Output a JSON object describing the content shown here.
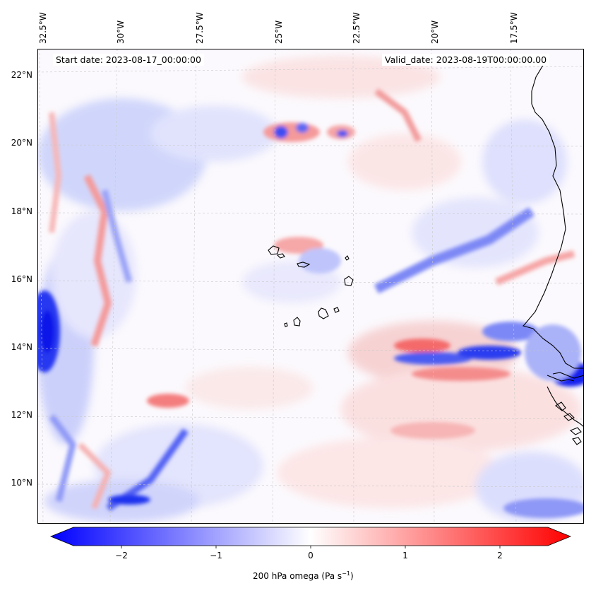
{
  "map": {
    "start_date": "Start date: 2023-08-17_00:00:00",
    "valid_date": "Valid_date: 2023-08-19T00:00:00.00",
    "lon_labels": [
      "32.5°W",
      "30°W",
      "27.5°W",
      "25°W",
      "22.5°W",
      "20°W",
      "17.5°W"
    ],
    "lat_labels": [
      "22°N",
      "20°N",
      "18°N",
      "16°N",
      "14°N",
      "12°N",
      "10°N"
    ],
    "extent": {
      "lon_min": -32.6,
      "lon_max": -15.0,
      "lat_min": 8.9,
      "lat_max": 22.8
    }
  },
  "colorbar": {
    "label": "200 hPa omega (Pa s",
    "label_sup": "−1",
    "label_end": ")",
    "ticks": [
      "−2",
      "−1",
      "0",
      "1",
      "2"
    ],
    "tick_values": [
      -2,
      -1,
      0,
      1,
      2
    ],
    "range": [
      -2.75,
      2.75
    ],
    "colormap": "bwr",
    "colors": {
      "min": "#0000ff",
      "mid": "#ffffff",
      "max": "#ff0000"
    }
  }
}
